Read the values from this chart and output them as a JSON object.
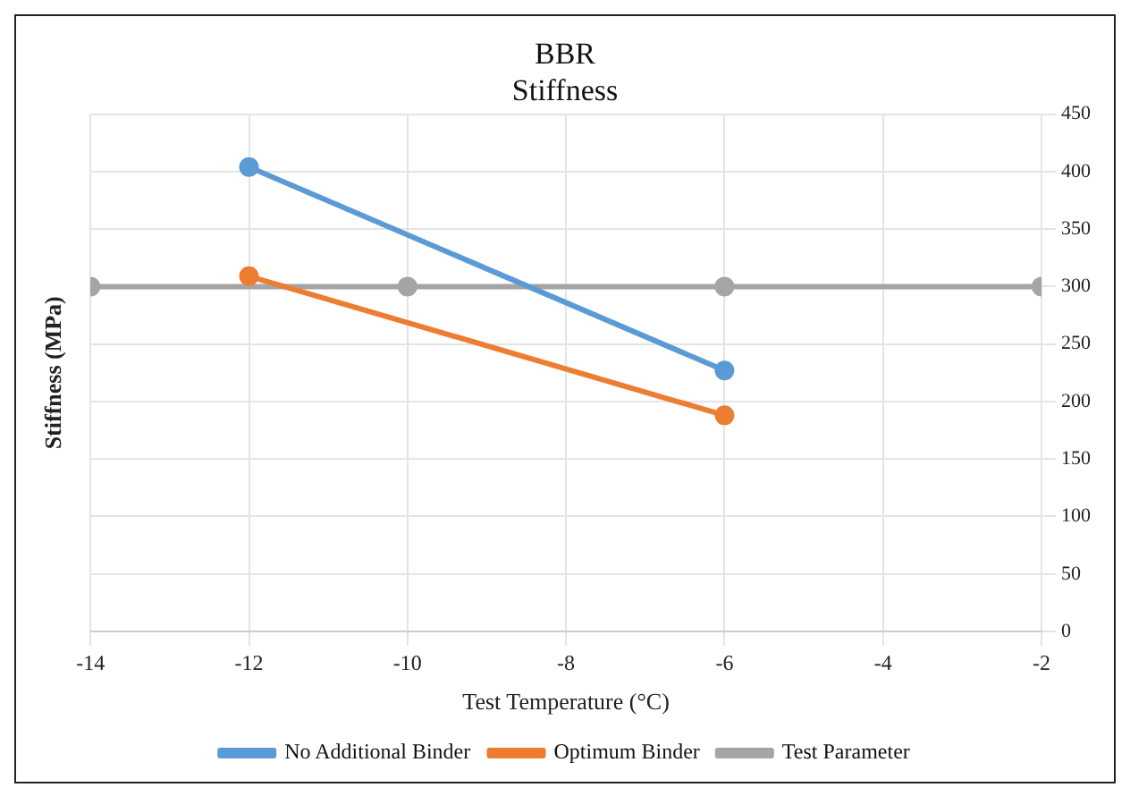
{
  "chart_data": {
    "type": "line",
    "title": "BBR\nStiffness",
    "xlabel": "Test Temperature (°C)",
    "ylabel": "Stiffness (MPa)",
    "xlim": [
      -14,
      -2
    ],
    "xticks": [
      -14,
      -12,
      -10,
      -8,
      -6,
      -4,
      -2
    ],
    "ylim": [
      0,
      450
    ],
    "yticks": [
      0,
      50,
      100,
      150,
      200,
      250,
      300,
      350,
      400,
      450
    ],
    "grid": true,
    "legend": "bottom",
    "marker": "circle",
    "line_style": "solid",
    "series": [
      {
        "name": "No Additional Binder",
        "color": "#5b9bd5",
        "x": [
          -12,
          -6
        ],
        "values": [
          404,
          227
        ]
      },
      {
        "name": "Optimum Binder",
        "color": "#ed7d31",
        "x": [
          -12,
          -6
        ],
        "values": [
          309,
          188
        ]
      },
      {
        "name": "Test Parameter",
        "color": "#a5a5a5",
        "x": [
          -14,
          -10,
          -6,
          -2
        ],
        "values": [
          300,
          300,
          300,
          300
        ]
      }
    ]
  }
}
